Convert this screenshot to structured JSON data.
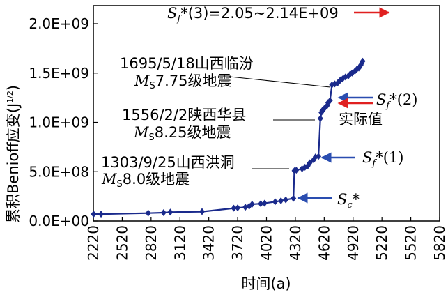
{
  "chart_data": {
    "type": "line",
    "xlabel": "时间(a)",
    "ylabel": "累积Benioff应变(J",
    "ylabel_sup": "1/2",
    "ylabel_close": ")",
    "xlim": [
      2220,
      5820
    ],
    "ylim": [
      0,
      2150000000.0
    ],
    "x_ticks": [
      2220,
      2520,
      2820,
      3120,
      3420,
      3720,
      4020,
      4320,
      4620,
      4920,
      5220,
      5520,
      5820
    ],
    "x_tick_labels": [
      "2220",
      "2520",
      "2820",
      "3120",
      "3420",
      "3720",
      "4020",
      "4320",
      "4620",
      "4920",
      "5220",
      "5520",
      "5820"
    ],
    "y_ticks": [
      0,
      500000000.0,
      1000000000.0,
      1500000000.0,
      2000000000.0
    ],
    "y_tick_labels": [
      "0.0E+00",
      "5.0E+08",
      "1.0E+09",
      "1.5E+09",
      "2.0E+09"
    ],
    "series": [
      {
        "color": "#1a2a8c",
        "x": [
          2223,
          2300,
          2790,
          2950,
          3020,
          3350,
          3680,
          3720,
          3800,
          3840,
          3870,
          3960,
          4000,
          4110,
          4170,
          4220,
          4300,
          4310,
          4330,
          4390,
          4420,
          4450,
          4470,
          4510,
          4530,
          4560,
          4580,
          4590,
          4600,
          4620,
          4650,
          4660,
          4680,
          4700,
          4730,
          4760,
          4780,
          4790,
          4810,
          4840,
          4870,
          4890,
          4910,
          4940,
          4960,
          4980,
          5000,
          5010,
          5020
        ],
        "y": [
          70000000.0,
          70000000.0,
          80000000.0,
          85000000.0,
          90000000.0,
          95000000.0,
          130000000.0,
          133000000.0,
          140000000.0,
          150000000.0,
          170000000.0,
          175000000.0,
          180000000.0,
          195000000.0,
          205000000.0,
          215000000.0,
          230000000.0,
          510000000.0,
          515000000.0,
          530000000.0,
          545000000.0,
          560000000.0,
          590000000.0,
          620000000.0,
          650000000.0,
          655000000.0,
          1040000000.0,
          1100000000.0,
          1120000000.0,
          1140000000.0,
          1170000000.0,
          1200000000.0,
          1220000000.0,
          1380000000.0,
          1390000000.0,
          1400000000.0,
          1420000000.0,
          1430000000.0,
          1440000000.0,
          1460000000.0,
          1470000000.0,
          1490000000.0,
          1500000000.0,
          1520000000.0,
          1540000000.0,
          1550000000.0,
          1580000000.0,
          1600000000.0,
          1620000000.0
        ]
      }
    ],
    "annotations": {
      "e1_line1": "1695/5/18山西临汾",
      "e1_line2_M": "M",
      "e1_line2_S": "S",
      "e1_line2_rest": "7.75级地震",
      "e2_line1": "1556/2/2陕西华县",
      "e2_line2_M": "M",
      "e2_line2_S": "S",
      "e2_line2_rest": "8.25级地震",
      "e3_line1": "1303/9/25山西洪洞",
      "e3_line2_M": "M",
      "e3_line2_S": "S",
      "e3_line2_rest": "8.0级地震",
      "sf3_S": "S",
      "sf3_f": "f",
      "sf3_rest": "*(3)=2.05~2.14E+09",
      "sf2_S": "S",
      "sf2_f": "f",
      "sf2_rest": "*(2)",
      "actual": "实际值",
      "sf1_S": "S",
      "sf1_f": "f",
      "sf1_rest": "*(1)",
      "sc_S": "S",
      "sc_c": "c",
      "sc_rest": "*"
    },
    "colors": {
      "data": "#1a2a8c",
      "blue_arrow": "#2a4db0",
      "red_arrow": "#e02020"
    }
  }
}
